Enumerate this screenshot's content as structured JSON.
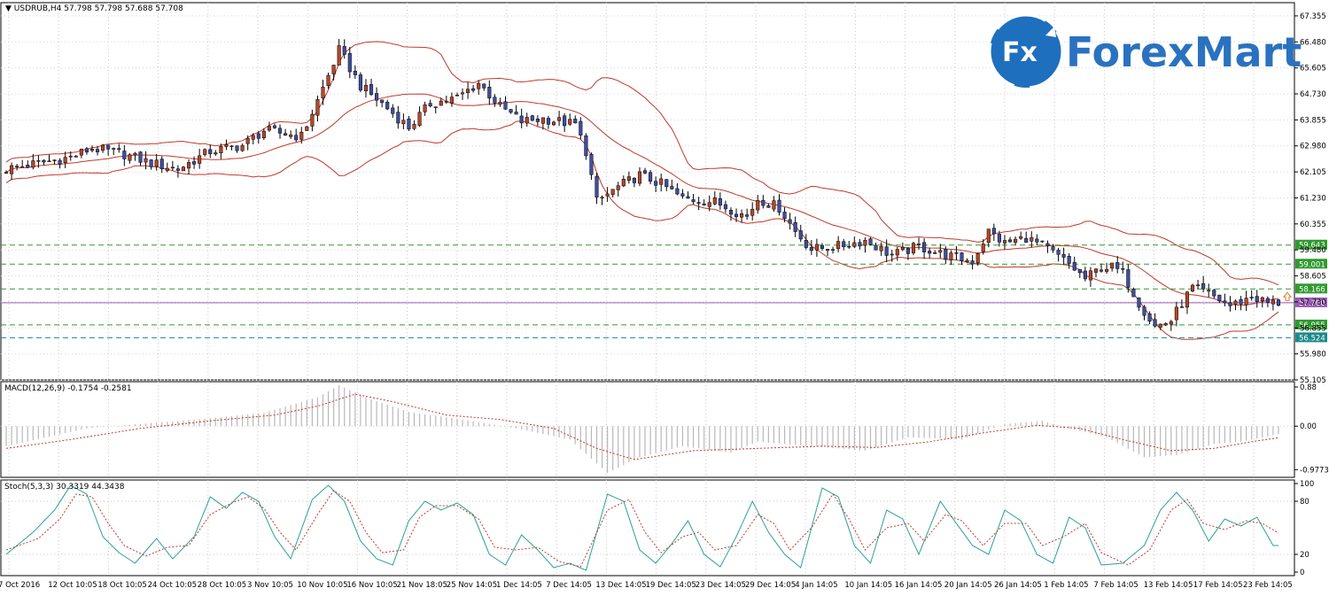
{
  "chart_data": [
    {
      "type": "candlestick",
      "title": "USDRUB,H4",
      "ohlc_header": "57.798 57.798 57.688 57.708",
      "current_price": "57.700",
      "ylim": [
        55.105,
        67.8
      ],
      "y_ticks": [
        "67.355",
        "66.480",
        "65.605",
        "64.730",
        "63.855",
        "62.980",
        "62.105",
        "61.230",
        "60.355",
        "59.480",
        "58.605",
        "57.730",
        "56.855",
        "55.980",
        "55.105"
      ],
      "x_ticks": [
        "7 Oct 2016",
        "12 Oct 10:05",
        "18 Oct 10:05",
        "24 Oct 10:05",
        "28 Oct 10:05",
        "3 Nov 10:05",
        "10 Nov 10:05",
        "16 Nov 10:05",
        "21 Nov 18:05",
        "25 Nov 14:05",
        "1 Dec 14:05",
        "7 Dec 14:05",
        "13 Dec 14:05",
        "19 Dec 14:05",
        "23 Dec 14:05",
        "29 Dec 14:05",
        "4 Jan 14:05",
        "10 Jan 14:05",
        "16 Jan 14:05",
        "20 Jan 14:05",
        "26 Jan 14:05",
        "1 Feb 14:05",
        "7 Feb 14:05",
        "13 Feb 14:05",
        "17 Feb 14:05",
        "23 Feb 14:05"
      ],
      "level_lines": [
        {
          "label": "59.643",
          "value": 59.643,
          "color": "#2e9a2e"
        },
        {
          "label": "59.001",
          "value": 59.001,
          "color": "#2e9a2e"
        },
        {
          "label": "58.166",
          "value": 58.166,
          "color": "#2e9a2e"
        },
        {
          "label": "56.955",
          "value": 56.955,
          "color": "#2e9a2e"
        },
        {
          "label": "56.524",
          "value": 56.524,
          "color": "#1a8a8a"
        }
      ],
      "price_line": {
        "label": "57.700",
        "value": 57.7,
        "color": "#9b59b6"
      },
      "up_color": "#b5462a",
      "down_color": "#3d4f9e",
      "band_color": "#c0392b",
      "anchors": [
        [
          0,
          62.2
        ],
        [
          12,
          62.6
        ],
        [
          16,
          62.9
        ],
        [
          22,
          62.7
        ],
        [
          27,
          62.4
        ],
        [
          32,
          62.2
        ],
        [
          38,
          62.8
        ],
        [
          44,
          63.0
        ],
        [
          48,
          63.5
        ],
        [
          55,
          63.3
        ],
        [
          58,
          64.5
        ],
        [
          62,
          66.2
        ],
        [
          66,
          65.0
        ],
        [
          70,
          64.4
        ],
        [
          75,
          63.6
        ],
        [
          79,
          64.4
        ],
        [
          84,
          64.6
        ],
        [
          88,
          65.1
        ],
        [
          92,
          64.3
        ],
        [
          96,
          63.8
        ],
        [
          100,
          63.9
        ],
        [
          106,
          63.7
        ],
        [
          108,
          62.8
        ],
        [
          110,
          61.1
        ],
        [
          114,
          61.6
        ],
        [
          118,
          62.0
        ],
        [
          122,
          61.7
        ],
        [
          126,
          61.2
        ],
        [
          132,
          61.1
        ],
        [
          138,
          60.6
        ],
        [
          140,
          61.2
        ],
        [
          144,
          60.9
        ],
        [
          147,
          60.1
        ],
        [
          150,
          59.5
        ],
        [
          155,
          59.6
        ],
        [
          160,
          59.8
        ],
        [
          165,
          59.3
        ],
        [
          170,
          59.6
        ],
        [
          175,
          59.3
        ],
        [
          180,
          59.1
        ],
        [
          183,
          60.1
        ],
        [
          186,
          59.7
        ],
        [
          190,
          59.9
        ],
        [
          194,
          59.5
        ],
        [
          198,
          59.0
        ],
        [
          201,
          58.5
        ],
        [
          204,
          58.9
        ],
        [
          206,
          58.9
        ],
        [
          208,
          58.7
        ],
        [
          211,
          57.7
        ],
        [
          214,
          56.9
        ],
        [
          217,
          57.1
        ],
        [
          219,
          57.7
        ],
        [
          221,
          58.2
        ],
        [
          224,
          58.0
        ],
        [
          228,
          57.6
        ],
        [
          232,
          57.9
        ],
        [
          235,
          57.7
        ],
        [
          237,
          57.7
        ]
      ]
    },
    {
      "type": "bar",
      "title": "MACD(12,26,9) -0.1754 -0.2581",
      "ylim": [
        -1.15,
        1.0
      ],
      "y_ticks": [
        "0.88",
        "0.00",
        "-0.9773"
      ],
      "series": [
        {
          "name": "MACD",
          "role": "histogram",
          "color": "#b8b8b8",
          "anchors": [
            [
              0,
              -0.45
            ],
            [
              15,
              -0.05
            ],
            [
              25,
              0.05
            ],
            [
              38,
              0.18
            ],
            [
              48,
              0.3
            ],
            [
              58,
              0.65
            ],
            [
              62,
              0.92
            ],
            [
              68,
              0.6
            ],
            [
              75,
              0.32
            ],
            [
              85,
              0.15
            ],
            [
              95,
              -0.05
            ],
            [
              105,
              -0.3
            ],
            [
              112,
              -1.05
            ],
            [
              118,
              -0.7
            ],
            [
              126,
              -0.45
            ],
            [
              135,
              -0.6
            ],
            [
              140,
              -0.35
            ],
            [
              150,
              -0.45
            ],
            [
              160,
              -0.55
            ],
            [
              168,
              -0.25
            ],
            [
              178,
              -0.3
            ],
            [
              186,
              0.05
            ],
            [
              193,
              0.12
            ],
            [
              198,
              -0.05
            ],
            [
              205,
              -0.25
            ],
            [
              212,
              -0.7
            ],
            [
              218,
              -0.65
            ],
            [
              225,
              -0.4
            ],
            [
              230,
              -0.35
            ],
            [
              237,
              -0.18
            ]
          ]
        },
        {
          "name": "Signal",
          "role": "dotted-line",
          "color": "#c0392b",
          "anchors": [
            [
              0,
              -0.5
            ],
            [
              12,
              -0.3
            ],
            [
              25,
              -0.05
            ],
            [
              38,
              0.12
            ],
            [
              50,
              0.25
            ],
            [
              58,
              0.45
            ],
            [
              65,
              0.72
            ],
            [
              72,
              0.55
            ],
            [
              82,
              0.25
            ],
            [
              92,
              0.15
            ],
            [
              102,
              -0.05
            ],
            [
              110,
              -0.5
            ],
            [
              117,
              -0.75
            ],
            [
              128,
              -0.55
            ],
            [
              140,
              -0.5
            ],
            [
              152,
              -0.45
            ],
            [
              162,
              -0.48
            ],
            [
              172,
              -0.35
            ],
            [
              182,
              -0.15
            ],
            [
              192,
              0.02
            ],
            [
              200,
              -0.05
            ],
            [
              208,
              -0.3
            ],
            [
              217,
              -0.55
            ],
            [
              225,
              -0.5
            ],
            [
              232,
              -0.35
            ],
            [
              237,
              -0.26
            ]
          ]
        }
      ]
    },
    {
      "type": "line",
      "title": "Stoch(5,3,3) 30.3319 44.3438",
      "ylim": [
        0,
        100
      ],
      "y_ticks": [
        "100",
        "80",
        "20",
        "0"
      ],
      "series": [
        {
          "name": "Main",
          "color": "#2aa198",
          "anchors": [
            [
              0,
              20
            ],
            [
              5,
              45
            ],
            [
              9,
              70
            ],
            [
              12,
              98
            ],
            [
              15,
              88
            ],
            [
              18,
              40
            ],
            [
              21,
              22
            ],
            [
              24,
              10
            ],
            [
              28,
              38
            ],
            [
              31,
              15
            ],
            [
              35,
              40
            ],
            [
              38,
              85
            ],
            [
              41,
              72
            ],
            [
              44,
              90
            ],
            [
              47,
              80
            ],
            [
              50,
              40
            ],
            [
              53,
              15
            ],
            [
              57,
              82
            ],
            [
              60,
              98
            ],
            [
              63,
              80
            ],
            [
              66,
              35
            ],
            [
              69,
              15
            ],
            [
              72,
              8
            ],
            [
              75,
              58
            ],
            [
              78,
              80
            ],
            [
              81,
              70
            ],
            [
              84,
              78
            ],
            [
              87,
              65
            ],
            [
              90,
              20
            ],
            [
              93,
              8
            ],
            [
              96,
              42
            ],
            [
              99,
              25
            ],
            [
              102,
              5
            ],
            [
              105,
              10
            ],
            [
              108,
              2
            ],
            [
              112,
              88
            ],
            [
              115,
              80
            ],
            [
              118,
              25
            ],
            [
              121,
              10
            ],
            [
              124,
              32
            ],
            [
              127,
              58
            ],
            [
              130,
              20
            ],
            [
              133,
              6
            ],
            [
              136,
              40
            ],
            [
              139,
              80
            ],
            [
              142,
              45
            ],
            [
              145,
              20
            ],
            [
              148,
              5
            ],
            [
              152,
              95
            ],
            [
              155,
              85
            ],
            [
              158,
              30
            ],
            [
              161,
              10
            ],
            [
              164,
              70
            ],
            [
              167,
              60
            ],
            [
              170,
              20
            ],
            [
              174,
              80
            ],
            [
              177,
              55
            ],
            [
              180,
              30
            ],
            [
              183,
              20
            ],
            [
              186,
              70
            ],
            [
              189,
              58
            ],
            [
              192,
              20
            ],
            [
              195,
              10
            ],
            [
              198,
              62
            ],
            [
              201,
              50
            ],
            [
              204,
              8
            ],
            [
              208,
              10
            ],
            [
              212,
              30
            ],
            [
              215,
              70
            ],
            [
              218,
              90
            ],
            [
              221,
              70
            ],
            [
              224,
              35
            ],
            [
              227,
              60
            ],
            [
              230,
              52
            ],
            [
              233,
              62
            ],
            [
              236,
              30
            ]
          ]
        },
        {
          "name": "Signal",
          "color": "#c0392b",
          "dashed": true,
          "anchors": [
            [
              0,
              25
            ],
            [
              6,
              38
            ],
            [
              10,
              60
            ],
            [
              13,
              88
            ],
            [
              16,
              85
            ],
            [
              19,
              55
            ],
            [
              22,
              30
            ],
            [
              26,
              18
            ],
            [
              30,
              28
            ],
            [
              34,
              30
            ],
            [
              38,
              65
            ],
            [
              42,
              78
            ],
            [
              45,
              85
            ],
            [
              48,
              72
            ],
            [
              51,
              45
            ],
            [
              54,
              25
            ],
            [
              58,
              65
            ],
            [
              61,
              92
            ],
            [
              64,
              80
            ],
            [
              67,
              45
            ],
            [
              70,
              22
            ],
            [
              74,
              25
            ],
            [
              77,
              62
            ],
            [
              80,
              75
            ],
            [
              84,
              75
            ],
            [
              88,
              60
            ],
            [
              91,
              28
            ],
            [
              95,
              25
            ],
            [
              99,
              28
            ],
            [
              103,
              12
            ],
            [
              107,
              6
            ],
            [
              112,
              70
            ],
            [
              116,
              82
            ],
            [
              119,
              45
            ],
            [
              122,
              22
            ],
            [
              126,
              40
            ],
            [
              129,
              45
            ],
            [
              132,
              25
            ],
            [
              136,
              30
            ],
            [
              140,
              65
            ],
            [
              143,
              55
            ],
            [
              146,
              25
            ],
            [
              150,
              50
            ],
            [
              154,
              88
            ],
            [
              157,
              60
            ],
            [
              160,
              25
            ],
            [
              164,
              50
            ],
            [
              168,
              55
            ],
            [
              171,
              35
            ],
            [
              175,
              65
            ],
            [
              178,
              58
            ],
            [
              182,
              30
            ],
            [
              186,
              55
            ],
            [
              190,
              55
            ],
            [
              193,
              30
            ],
            [
              197,
              40
            ],
            [
              201,
              55
            ],
            [
              204,
              22
            ],
            [
              209,
              8
            ],
            [
              213,
              25
            ],
            [
              217,
              70
            ],
            [
              220,
              82
            ],
            [
              223,
              55
            ],
            [
              227,
              48
            ],
            [
              231,
              58
            ],
            [
              234,
              55
            ],
            [
              237,
              44
            ]
          ]
        }
      ]
    }
  ],
  "logo": {
    "brand": "ForexMart",
    "mark": "Fx"
  }
}
